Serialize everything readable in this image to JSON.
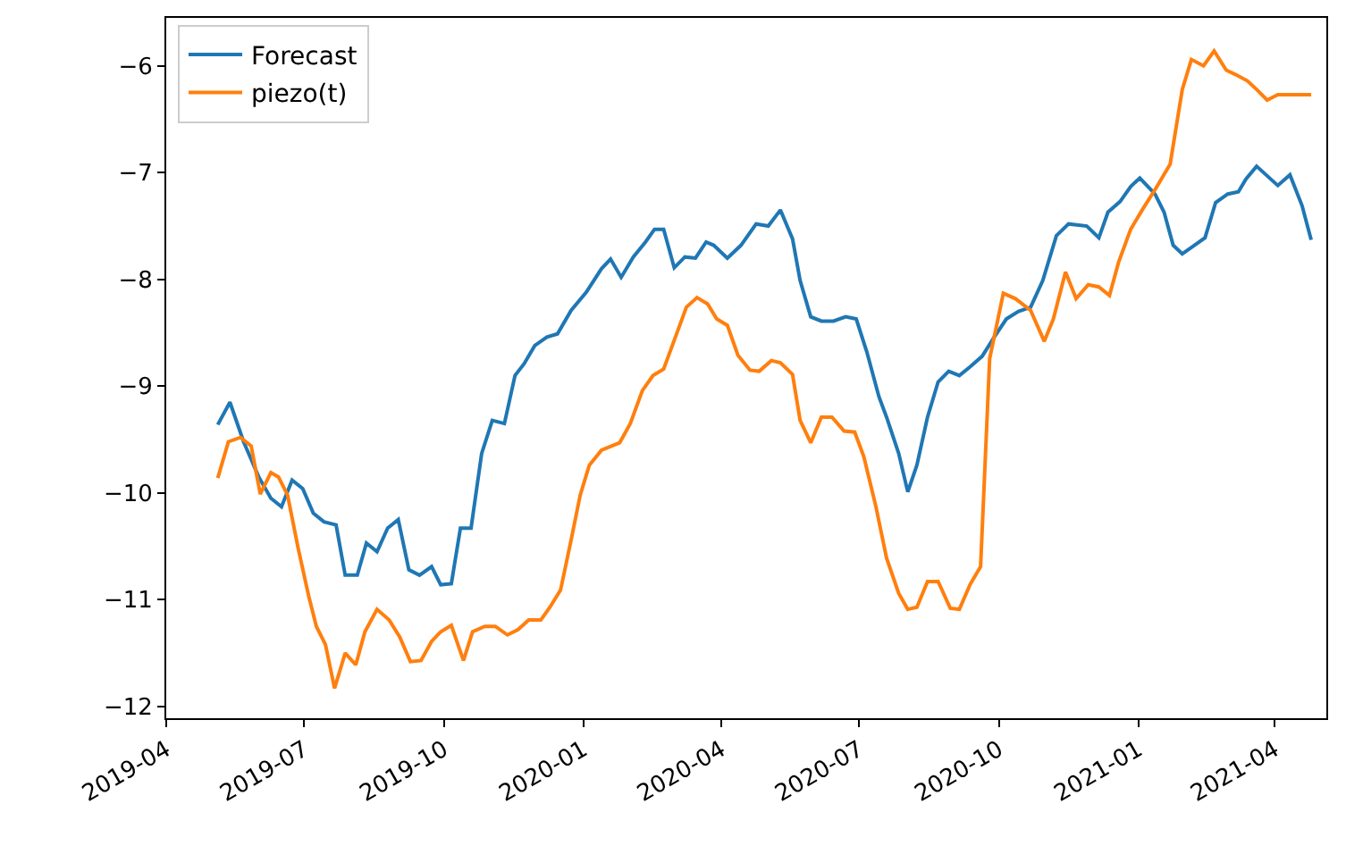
{
  "chart_data": {
    "type": "line",
    "legend": "top left",
    "grid": false,
    "line_style": "solid",
    "xlim": [
      "2019-04-01",
      "2021-05-05"
    ],
    "ylim": [
      -12.11,
      -5.55
    ],
    "xticks": [
      {
        "value": "2019-04-01",
        "label": "2019-04"
      },
      {
        "value": "2019-07-01",
        "label": "2019-07"
      },
      {
        "value": "2019-10-01",
        "label": "2019-10"
      },
      {
        "value": "2020-01-01",
        "label": "2020-01"
      },
      {
        "value": "2020-04-01",
        "label": "2020-04"
      },
      {
        "value": "2020-07-01",
        "label": "2020-07"
      },
      {
        "value": "2020-10-01",
        "label": "2020-10"
      },
      {
        "value": "2021-01-01",
        "label": "2021-01"
      },
      {
        "value": "2021-04-01",
        "label": "2021-04"
      }
    ],
    "yticks": [
      {
        "value": -12,
        "label": "−12"
      },
      {
        "value": -11,
        "label": "−11"
      },
      {
        "value": -10,
        "label": "−10"
      },
      {
        "value": -9,
        "label": "−9"
      },
      {
        "value": -8,
        "label": "−8"
      },
      {
        "value": -7,
        "label": "−7"
      },
      {
        "value": -6,
        "label": "−6"
      }
    ],
    "series": [
      {
        "name": "Forecast",
        "color": "#1f77b4",
        "x": [
          "2019-05-05",
          "2019-05-13",
          "2019-05-22",
          "2019-06-01",
          "2019-06-09",
          "2019-06-16",
          "2019-06-23",
          "2019-06-30",
          "2019-07-07",
          "2019-07-14",
          "2019-07-22",
          "2019-07-28",
          "2019-08-05",
          "2019-08-11",
          "2019-08-18",
          "2019-08-25",
          "2019-09-01",
          "2019-09-08",
          "2019-09-15",
          "2019-09-23",
          "2019-09-29",
          "2019-10-06",
          "2019-10-12",
          "2019-10-19",
          "2019-10-26",
          "2019-11-02",
          "2019-11-10",
          "2019-11-17",
          "2019-11-23",
          "2019-11-30",
          "2019-12-08",
          "2019-12-15",
          "2019-12-24",
          "2020-01-03",
          "2020-01-13",
          "2020-01-19",
          "2020-01-26",
          "2020-02-03",
          "2020-02-11",
          "2020-02-17",
          "2020-02-23",
          "2020-03-01",
          "2020-03-08",
          "2020-03-15",
          "2020-03-22",
          "2020-03-27",
          "2020-04-05",
          "2020-04-14",
          "2020-04-24",
          "2020-05-02",
          "2020-05-10",
          "2020-05-18",
          "2020-05-23",
          "2020-05-30",
          "2020-06-06",
          "2020-06-14",
          "2020-06-22",
          "2020-06-29",
          "2020-07-06",
          "2020-07-14",
          "2020-07-19",
          "2020-07-27",
          "2020-08-02",
          "2020-08-08",
          "2020-08-15",
          "2020-08-22",
          "2020-08-29",
          "2020-09-05",
          "2020-09-12",
          "2020-09-20",
          "2020-09-28",
          "2020-10-06",
          "2020-10-14",
          "2020-10-22",
          "2020-10-30",
          "2020-11-08",
          "2020-11-16",
          "2020-11-28",
          "2020-12-06",
          "2020-12-12",
          "2020-12-20",
          "2020-12-27",
          "2021-01-02",
          "2021-01-12",
          "2021-01-18",
          "2021-01-24",
          "2021-01-30",
          "2021-02-07",
          "2021-02-14",
          "2021-02-21",
          "2021-03-01",
          "2021-03-08",
          "2021-03-13",
          "2021-03-20",
          "2021-03-27",
          "2021-04-03",
          "2021-04-11",
          "2021-04-19",
          "2021-04-25"
        ],
        "values": [
          -9.36,
          -9.15,
          -9.52,
          -9.85,
          -10.05,
          -10.13,
          -9.88,
          -9.96,
          -10.19,
          -10.27,
          -10.3,
          -10.77,
          -10.77,
          -10.47,
          -10.55,
          -10.33,
          -10.25,
          -10.72,
          -10.77,
          -10.69,
          -10.86,
          -10.85,
          -10.33,
          -10.33,
          -9.63,
          -9.32,
          -9.35,
          -8.9,
          -8.79,
          -8.62,
          -8.54,
          -8.51,
          -8.29,
          -8.12,
          -7.9,
          -7.81,
          -7.98,
          -7.79,
          -7.65,
          -7.53,
          -7.53,
          -7.89,
          -7.79,
          -7.8,
          -7.65,
          -7.68,
          -7.8,
          -7.68,
          -7.48,
          -7.5,
          -7.35,
          -7.62,
          -8.01,
          -8.35,
          -8.39,
          -8.39,
          -8.35,
          -8.37,
          -8.68,
          -9.1,
          -9.29,
          -9.63,
          -9.99,
          -9.74,
          -9.29,
          -8.96,
          -8.86,
          -8.9,
          -8.82,
          -8.72,
          -8.54,
          -8.37,
          -8.3,
          -8.26,
          -8.01,
          -7.59,
          -7.48,
          -7.5,
          -7.61,
          -7.37,
          -7.27,
          -7.13,
          -7.05,
          -7.2,
          -7.37,
          -7.68,
          -7.76,
          -7.68,
          -7.61,
          -7.28,
          -7.2,
          -7.18,
          -7.06,
          -6.94,
          -7.03,
          -7.12,
          -7.02,
          -7.31,
          -7.63
        ]
      },
      {
        "name": "piezo(t)",
        "color": "#ff7f0e",
        "x": [
          "2019-05-05",
          "2019-05-12",
          "2019-05-20",
          "2019-05-27",
          "2019-06-02",
          "2019-06-09",
          "2019-06-14",
          "2019-06-20",
          "2019-06-27",
          "2019-07-04",
          "2019-07-09",
          "2019-07-15",
          "2019-07-21",
          "2019-07-28",
          "2019-08-04",
          "2019-08-10",
          "2019-08-18",
          "2019-08-26",
          "2019-09-02",
          "2019-09-09",
          "2019-09-16",
          "2019-09-23",
          "2019-09-29",
          "2019-10-06",
          "2019-10-14",
          "2019-10-20",
          "2019-10-28",
          "2019-11-04",
          "2019-11-12",
          "2019-11-19",
          "2019-11-26",
          "2019-12-04",
          "2019-12-10",
          "2019-12-17",
          "2019-12-24",
          "2019-12-30",
          "2020-01-05",
          "2020-01-13",
          "2020-01-25",
          "2020-02-01",
          "2020-02-09",
          "2020-02-16",
          "2020-02-23",
          "2020-03-01",
          "2020-03-09",
          "2020-03-16",
          "2020-03-23",
          "2020-03-29",
          "2020-04-05",
          "2020-04-12",
          "2020-04-20",
          "2020-04-26",
          "2020-05-04",
          "2020-05-10",
          "2020-05-18",
          "2020-05-23",
          "2020-05-30",
          "2020-06-06",
          "2020-06-13",
          "2020-06-21",
          "2020-06-28",
          "2020-07-04",
          "2020-07-12",
          "2020-07-19",
          "2020-07-27",
          "2020-08-02",
          "2020-08-08",
          "2020-08-15",
          "2020-08-22",
          "2020-08-30",
          "2020-09-05",
          "2020-09-12",
          "2020-09-19",
          "2020-09-25",
          "2020-10-04",
          "2020-10-12",
          "2020-10-22",
          "2020-10-31",
          "2020-11-06",
          "2020-11-14",
          "2020-11-21",
          "2020-11-29",
          "2020-12-06",
          "2020-12-13",
          "2020-12-19",
          "2020-12-27",
          "2021-01-04",
          "2021-01-12",
          "2021-01-22",
          "2021-01-30",
          "2021-02-05",
          "2021-02-13",
          "2021-02-20",
          "2021-02-28",
          "2021-03-06",
          "2021-03-14",
          "2021-03-20",
          "2021-03-27",
          "2021-04-03",
          "2021-04-25"
        ],
        "values": [
          -9.86,
          -9.52,
          -9.48,
          -9.56,
          -10.01,
          -9.81,
          -9.85,
          -10.02,
          -10.52,
          -10.97,
          -11.25,
          -11.42,
          -11.83,
          -11.5,
          -11.61,
          -11.3,
          -11.09,
          -11.19,
          -11.35,
          -11.58,
          -11.57,
          -11.39,
          -11.3,
          -11.24,
          -11.57,
          -11.3,
          -11.25,
          -11.25,
          -11.33,
          -11.28,
          -11.19,
          -11.19,
          -11.07,
          -10.91,
          -10.44,
          -10.02,
          -9.74,
          -9.6,
          -9.53,
          -9.35,
          -9.04,
          -8.9,
          -8.84,
          -8.57,
          -8.26,
          -8.17,
          -8.23,
          -8.37,
          -8.43,
          -8.71,
          -8.85,
          -8.86,
          -8.76,
          -8.78,
          -8.89,
          -9.32,
          -9.53,
          -9.29,
          -9.29,
          -9.42,
          -9.43,
          -9.66,
          -10.13,
          -10.61,
          -10.94,
          -11.09,
          -11.07,
          -10.83,
          -10.83,
          -11.08,
          -11.09,
          -10.86,
          -10.69,
          -8.74,
          -8.13,
          -8.18,
          -8.29,
          -8.58,
          -8.37,
          -7.93,
          -8.18,
          -8.05,
          -8.07,
          -8.15,
          -7.84,
          -7.53,
          -7.34,
          -7.16,
          -6.92,
          -6.22,
          -5.94,
          -6.0,
          -5.86,
          -6.04,
          -6.08,
          -6.14,
          -6.22,
          -6.32,
          -6.27,
          -6.27
        ]
      }
    ]
  }
}
